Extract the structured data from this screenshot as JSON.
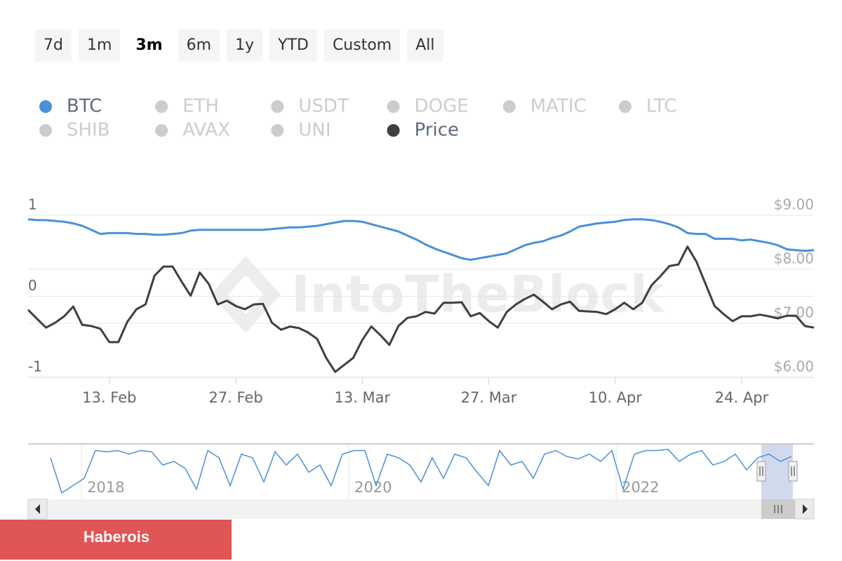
{
  "range_selector": {
    "buttons": [
      "7d",
      "1m",
      "3m",
      "6m",
      "1y",
      "YTD",
      "Custom",
      "All"
    ],
    "selected": 2
  },
  "banner": {
    "text": "Haberois"
  },
  "chart_data": {
    "type": "line",
    "watermark": "IntoTheBlock",
    "x": [
      "4. Feb",
      "5. Feb",
      "6. Feb",
      "7. Feb",
      "8. Feb",
      "9. Feb",
      "10. Feb",
      "11. Feb",
      "12. Feb",
      "13. Feb",
      "14. Feb",
      "15. Feb",
      "16. Feb",
      "17. Feb",
      "18. Feb",
      "19. Feb",
      "20. Feb",
      "21. Feb",
      "22. Feb",
      "23. Feb",
      "24. Feb",
      "25. Feb",
      "26. Feb",
      "27. Feb",
      "28. Feb",
      "1. Mar",
      "2. Mar",
      "3. Mar",
      "4. Mar",
      "5. Mar",
      "6. Mar",
      "7. Mar",
      "8. Mar",
      "9. Mar",
      "10. Mar",
      "11. Mar",
      "12. Mar",
      "13. Mar",
      "14. Mar",
      "15. Mar",
      "16. Mar",
      "17. Mar",
      "18. Mar",
      "19. Mar",
      "20. Mar",
      "21. Mar",
      "22. Mar",
      "23. Mar",
      "24. Mar",
      "25. Mar",
      "26. Mar",
      "27. Mar",
      "28. Mar",
      "29. Mar",
      "30. Mar",
      "31. Mar",
      "1. Apr",
      "2. Apr",
      "3. Apr",
      "4. Apr",
      "5. Apr",
      "6. Apr",
      "7. Apr",
      "8. Apr",
      "9. Apr",
      "10. Apr",
      "11. Apr",
      "12. Apr",
      "13. Apr",
      "14. Apr",
      "15. Apr",
      "16. Apr",
      "17. Apr",
      "18. Apr",
      "19. Apr",
      "20. Apr",
      "21. Apr",
      "22. Apr",
      "23. Apr",
      "24. Apr",
      "25. Apr",
      "26. Apr",
      "27. Apr",
      "28. Apr",
      "29. Apr",
      "30. Apr",
      "1. May",
      "2. May"
    ],
    "xticks": [
      "13. Feb",
      "27. Feb",
      "13. Mar",
      "27. Mar",
      "10. Apr",
      "24. Apr"
    ],
    "ylim": [
      -1,
      1
    ],
    "yticks": [
      -1,
      0,
      1
    ],
    "y2lim": [
      6,
      9
    ],
    "y2ticks": [
      {
        "value": 6,
        "label": "$6.00"
      },
      {
        "value": 7,
        "label": "$7.00"
      },
      {
        "value": 8,
        "label": "$8.00"
      },
      {
        "value": 9,
        "label": "$9.00"
      }
    ],
    "grid": true,
    "series": [
      {
        "name": "BTC",
        "color": "#4a90d9",
        "visible": true,
        "values": [
          0.95,
          0.94,
          0.94,
          0.93,
          0.92,
          0.9,
          0.87,
          0.82,
          0.77,
          0.78,
          0.78,
          0.78,
          0.77,
          0.77,
          0.76,
          0.76,
          0.77,
          0.78,
          0.81,
          0.82,
          0.82,
          0.82,
          0.82,
          0.82,
          0.82,
          0.82,
          0.82,
          0.83,
          0.84,
          0.85,
          0.85,
          0.86,
          0.87,
          0.89,
          0.91,
          0.93,
          0.93,
          0.92,
          0.89,
          0.86,
          0.83,
          0.8,
          0.75,
          0.7,
          0.64,
          0.59,
          0.55,
          0.51,
          0.47,
          0.45,
          0.47,
          0.49,
          0.51,
          0.53,
          0.58,
          0.63,
          0.66,
          0.68,
          0.72,
          0.75,
          0.8,
          0.86,
          0.88,
          0.9,
          0.91,
          0.92,
          0.94,
          0.95,
          0.95,
          0.94,
          0.92,
          0.89,
          0.85,
          0.78,
          0.77,
          0.77,
          0.71,
          0.71,
          0.71,
          0.69,
          0.7,
          0.68,
          0.66,
          0.63,
          0.58,
          0.57,
          0.56,
          0.57
        ]
      },
      {
        "name": "ETH",
        "color": "#cccccc",
        "visible": false
      },
      {
        "name": "USDT",
        "color": "#cccccc",
        "visible": false
      },
      {
        "name": "DOGE",
        "color": "#cccccc",
        "visible": false
      },
      {
        "name": "MATIC",
        "color": "#cccccc",
        "visible": false
      },
      {
        "name": "LTC",
        "color": "#cccccc",
        "visible": false
      },
      {
        "name": "SHIB",
        "color": "#cccccc",
        "visible": false
      },
      {
        "name": "AVAX",
        "color": "#cccccc",
        "visible": false
      },
      {
        "name": "UNI",
        "color": "#cccccc",
        "visible": false
      },
      {
        "name": "Price",
        "color": "#3d3f42",
        "visible": true,
        "axis": "y2",
        "values": [
          7.25,
          7.08,
          6.92,
          7.01,
          7.13,
          7.31,
          6.97,
          6.95,
          6.9,
          6.65,
          6.65,
          7.03,
          7.26,
          7.35,
          7.88,
          8.05,
          8.05,
          7.77,
          7.51,
          7.94,
          7.73,
          7.35,
          7.42,
          7.32,
          7.26,
          7.35,
          7.36,
          7.01,
          6.88,
          6.94,
          6.91,
          6.83,
          6.71,
          6.36,
          6.1,
          6.23,
          6.36,
          6.69,
          6.94,
          6.78,
          6.6,
          6.95,
          7.1,
          7.13,
          7.21,
          7.18,
          7.38,
          7.38,
          7.39,
          7.13,
          7.19,
          7.04,
          6.92,
          7.21,
          7.35,
          7.45,
          7.53,
          7.4,
          7.26,
          7.35,
          7.4,
          7.23,
          7.22,
          7.21,
          7.17,
          7.26,
          7.38,
          7.26,
          7.38,
          7.7,
          7.87,
          8.06,
          8.09,
          8.42,
          8.14,
          7.73,
          7.32,
          7.17,
          7.04,
          7.13,
          7.13,
          7.16,
          7.13,
          7.09,
          7.14,
          7.14,
          6.95,
          6.92
        ]
      }
    ],
    "navigator": {
      "xlim": [
        2017.6,
        2023.48
      ],
      "xticks": [
        2018,
        2020,
        2022
      ],
      "ylim": [
        -1,
        1
      ],
      "color": "#4a90d9",
      "values": [
        null,
        null,
        0.6,
        -0.85,
        -0.55,
        -0.25,
        0.9,
        0.85,
        0.9,
        0.75,
        0.9,
        0.85,
        0.3,
        0.45,
        0.15,
        -0.7,
        0.9,
        0.6,
        -0.55,
        0.75,
        0.6,
        -0.4,
        0.85,
        0.3,
        0.75,
        0,
        0.3,
        -0.55,
        0.75,
        0.9,
        0.9,
        -0.55,
        0.75,
        0.6,
        0.3,
        -0.4,
        0.6,
        -0.25,
        0.75,
        0.6,
        0,
        -0.55,
        0.9,
        0.3,
        0.45,
        -0.25,
        0.75,
        0.9,
        0.65,
        0.55,
        0.75,
        0.45,
        0.9,
        -0.7,
        0.75,
        0.9,
        0.9,
        0.95,
        0.45,
        0.75,
        0.9,
        0.3,
        0.45,
        0.75,
        0.1,
        0.6,
        0.75,
        0.45,
        0.65,
        null,
        null
      ]
    }
  }
}
